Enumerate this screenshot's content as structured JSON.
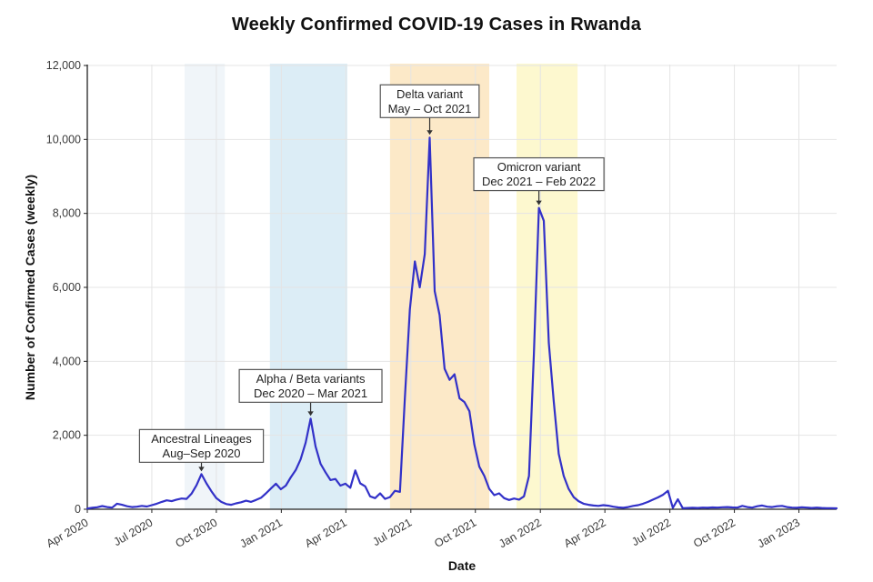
{
  "chart_data": {
    "type": "line",
    "title": "Weekly Confirmed COVID-19 Cases in Rwanda",
    "xlabel": "Date",
    "ylabel": "Number of Confirmed Cases (weekly)",
    "ylim": [
      0,
      12000
    ],
    "grid": true,
    "legend": "none",
    "line_color": "#3231c8",
    "axis_color": "#222222",
    "grid_color": "#e4e4e4",
    "tick_label_color": "#3b3b3b",
    "x_unit": "week (Apr 2020 – Feb 2023)",
    "x_ticks": [
      {
        "label": "Apr 2020",
        "week": 0
      },
      {
        "label": "Jul 2020",
        "week": 13.0
      },
      {
        "label": "Oct 2020",
        "week": 26.0
      },
      {
        "label": "Jan 2021",
        "week": 39.1
      },
      {
        "label": "Apr 2021",
        "week": 52.1
      },
      {
        "label": "Jul 2021",
        "week": 65.2
      },
      {
        "label": "Oct 2021",
        "week": 78.2
      },
      {
        "label": "Jan 2022",
        "week": 91.3
      },
      {
        "label": "Apr 2022",
        "week": 104.3
      },
      {
        "label": "Jul 2022",
        "week": 117.4
      },
      {
        "label": "Oct 2022",
        "week": 130.4
      },
      {
        "label": "Jan 2023",
        "week": 143.4
      }
    ],
    "y_ticks": [
      {
        "label": "0",
        "value": 0
      },
      {
        "label": "2,000",
        "value": 2000
      },
      {
        "label": "4,000",
        "value": 4000
      },
      {
        "label": "6,000",
        "value": 6000
      },
      {
        "label": "8,000",
        "value": 8000
      },
      {
        "label": "10,000",
        "value": 10000
      },
      {
        "label": "12,000",
        "value": 12000
      }
    ],
    "values": [
      20,
      40,
      55,
      85,
      60,
      45,
      150,
      120,
      80,
      60,
      70,
      90,
      75,
      110,
      150,
      200,
      240,
      220,
      260,
      290,
      280,
      420,
      650,
      950,
      700,
      490,
      300,
      200,
      140,
      120,
      160,
      190,
      230,
      200,
      250,
      310,
      430,
      560,
      690,
      540,
      640,
      860,
      1060,
      1350,
      1800,
      2450,
      1700,
      1230,
      1000,
      790,
      820,
      640,
      690,
      580,
      1050,
      700,
      620,
      350,
      300,
      430,
      280,
      330,
      500,
      470,
      3000,
      5400,
      6700,
      6000,
      6900,
      10050,
      5900,
      5250,
      3800,
      3500,
      3650,
      3000,
      2900,
      2650,
      1750,
      1150,
      900,
      550,
      380,
      430,
      300,
      250,
      290,
      260,
      350,
      900,
      4200,
      8150,
      7800,
      4500,
      2900,
      1500,
      900,
      550,
      330,
      220,
      150,
      120,
      100,
      90,
      110,
      95,
      70,
      50,
      40,
      60,
      90,
      110,
      150,
      200,
      260,
      320,
      390,
      500,
      40,
      270,
      30,
      35,
      40,
      35,
      45,
      40,
      50,
      45,
      55,
      60,
      50,
      45,
      90,
      60,
      45,
      80,
      100,
      70,
      60,
      80,
      90,
      60,
      45,
      40,
      55,
      45,
      35,
      45,
      35,
      30,
      30,
      25
    ],
    "bands": [
      {
        "name": "ancestral",
        "label": "Ancestral Lineages",
        "period": "Aug–Sep 2020",
        "from_week": 19.6,
        "to_week": 27.7,
        "color": "#f0f5f9"
      },
      {
        "name": "alpha-beta",
        "label": "Alpha / Beta variants",
        "period": "Dec 2020 – Mar 2021",
        "from_week": 36.8,
        "to_week": 52.4,
        "color": "#dcedf6"
      },
      {
        "name": "delta",
        "label": "Delta variant",
        "period": "May – Oct 2021",
        "from_week": 61.0,
        "to_week": 81.0,
        "color": "#fce9c8"
      },
      {
        "name": "omicron",
        "label": "Omicron variant",
        "period": "Dec 2021 – Feb 2022",
        "from_week": 86.5,
        "to_week": 98.8,
        "color": "#fdf8cf"
      }
    ],
    "annotations": [
      {
        "name": "ancestral",
        "lines": [
          "Ancestral Lineages",
          "Aug–Sep 2020"
        ],
        "week": 23,
        "value": 950,
        "gap": 10
      },
      {
        "name": "alpha-beta",
        "lines": [
          "Alpha / Beta variants",
          "Dec 2020 – Mar 2021"
        ],
        "week": 45,
        "value": 2450,
        "gap": 15
      },
      {
        "name": "delta",
        "lines": [
          "Delta variant",
          "May – Oct 2021"
        ],
        "week": 69,
        "value": 10050,
        "gap": 19
      },
      {
        "name": "omicron",
        "lines": [
          "Omicron variant",
          "Dec 2021 – Feb 2022"
        ],
        "week": 91,
        "value": 8150,
        "gap": 16
      }
    ]
  }
}
